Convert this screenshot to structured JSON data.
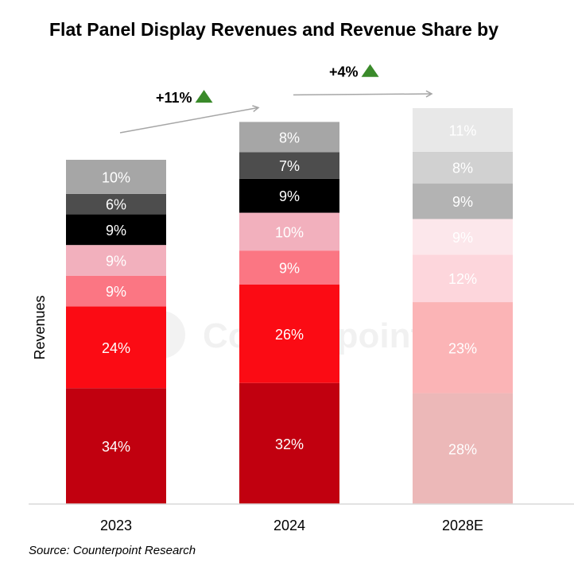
{
  "chart_data": {
    "type": "bar",
    "stacked": true,
    "title": "Flat Panel Display Revenues and Revenue Share by",
    "ylabel": "Revenues",
    "xlabel": "",
    "categories": [
      "2023",
      "2024",
      "2028E"
    ],
    "totals_relative": [
      100,
      111,
      115
    ],
    "segment_labels": [
      [
        "34%",
        "24%",
        "9%",
        "9%",
        "9%",
        "6%",
        "10%"
      ],
      [
        "32%",
        "26%",
        "9%",
        "10%",
        "9%",
        "7%",
        "8%"
      ],
      [
        "28%",
        "23%",
        "12%",
        "9%",
        "9%",
        "8%",
        "11%"
      ]
    ],
    "segment_shares": [
      [
        34,
        24,
        9,
        9,
        9,
        6,
        10
      ],
      [
        32,
        26,
        9,
        10,
        9,
        7,
        8
      ],
      [
        28,
        23,
        12,
        9,
        9,
        8,
        11
      ]
    ],
    "segment_colors": [
      [
        "#c1000f",
        "#fb0b14",
        "#fb7683",
        "#f2b0bd",
        "#000000",
        "#4d4d4d",
        "#a6a6a6"
      ],
      [
        "#c1000f",
        "#fb0b14",
        "#fb7683",
        "#f2b0bd",
        "#000000",
        "#4d4d4d",
        "#a6a6a6"
      ],
      [
        "#ecb8b8",
        "#fbb4b6",
        "#fdd6dc",
        "#fce7eb",
        "#b3b3b3",
        "#d1d1d1",
        "#e8e8e8"
      ]
    ],
    "label_colors": [
      [
        "#ffffff",
        "#ffffff",
        "#ffffff",
        "#ffffff",
        "#ffffff",
        "#ffffff",
        "#ffffff"
      ],
      [
        "#ffffff",
        "#ffffff",
        "#ffffff",
        "#ffffff",
        "#ffffff",
        "#ffffff",
        "#ffffff"
      ],
      [
        "#ffffff",
        "#ffffff",
        "#ffffff",
        "#ffffff",
        "#ffffff",
        "#ffffff",
        "#ffffff"
      ]
    ],
    "growth_annotations": [
      {
        "from": "2023",
        "to": "2024",
        "label": "+11%"
      },
      {
        "from": "2024",
        "to": "2028E",
        "label": "+4%"
      }
    ],
    "growth_marker_color": "#3a8a2a",
    "arrow_color": "#a6a6a6",
    "watermark": "Counterpoint",
    "source": "Source: Counterpoint Research"
  }
}
